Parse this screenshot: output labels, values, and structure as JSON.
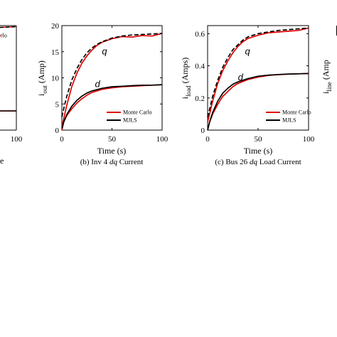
{
  "chart_data": [
    {
      "type": "line",
      "panel": "a-partial",
      "xlim": [
        0,
        100
      ],
      "x_ticks": [
        100
      ],
      "caption_tail": "e",
      "legend_partial": "rlo",
      "series": [
        {
          "name": "Monte Carlo",
          "color": "#e00000",
          "style": "solid",
          "x": [
            0,
            20,
            40,
            60,
            80,
            100
          ],
          "y": [
            0.97,
            0.975,
            0.98,
            0.985,
            0.99,
            0.995
          ]
        },
        {
          "name": "MJLS",
          "color": "#000000",
          "style": "dashed",
          "x": [
            0,
            20,
            40,
            60,
            80,
            100
          ],
          "y": [
            0.97,
            0.975,
            0.98,
            0.985,
            0.99,
            0.995
          ]
        },
        {
          "name": "Monte Carlo",
          "color": "#e00000",
          "style": "solid",
          "x": [
            0,
            50,
            100
          ],
          "y": [
            0.2,
            0.2,
            0.2
          ]
        },
        {
          "name": "MJLS",
          "color": "#000000",
          "style": "solid",
          "x": [
            0,
            50,
            100
          ],
          "y": [
            0.2,
            0.2,
            0.2
          ]
        }
      ]
    },
    {
      "type": "line",
      "panel": "b",
      "caption_prefix": "(b)  Inv 4 ",
      "caption_italic": "dq",
      "caption_suffix": " Current",
      "xlabel": "Time (s)",
      "ylabel_main": "i",
      "ylabel_sub": "out",
      "ylabel_unit": " (Amp)",
      "xlim": [
        0,
        100
      ],
      "ylim": [
        0,
        20
      ],
      "x_ticks": [
        0,
        50,
        100
      ],
      "y_ticks": [
        0,
        5,
        10,
        15,
        20
      ],
      "annotations": [
        {
          "text": "q",
          "x": 40,
          "y": 14.5
        },
        {
          "text": "d",
          "x": 33,
          "y": 8.2
        }
      ],
      "legend": [
        "Monte Carlo",
        "MJLS"
      ],
      "series": [
        {
          "name": "Monte Carlo",
          "color": "#e00000",
          "style": "solid",
          "x": [
            0,
            2,
            5,
            10,
            15,
            20,
            25,
            30,
            35,
            40,
            50,
            60,
            70,
            80,
            90,
            100
          ],
          "y": [
            0.5,
            2.3,
            4.8,
            8.4,
            10.9,
            12.8,
            14.2,
            15.3,
            16.2,
            16.8,
            17.5,
            17.9,
            17.8,
            18.1,
            18.0,
            18.5
          ]
        },
        {
          "name": "MJLS",
          "color": "#000000",
          "style": "dashed",
          "x": [
            0,
            2,
            5,
            10,
            15,
            20,
            25,
            30,
            35,
            40,
            50,
            60,
            70,
            80,
            90,
            100
          ],
          "y": [
            2.5,
            4.2,
            6.5,
            9.6,
            11.8,
            13.5,
            14.8,
            15.7,
            16.4,
            16.9,
            17.6,
            18.0,
            18.2,
            18.3,
            18.4,
            18.5
          ]
        },
        {
          "name": "Monte Carlo",
          "color": "#e00000",
          "style": "solid",
          "x": [
            0,
            2,
            5,
            10,
            15,
            20,
            25,
            30,
            40,
            50,
            60,
            70,
            80,
            90,
            100
          ],
          "y": [
            0,
            1.6,
            2.8,
            4.1,
            5.2,
            6.0,
            6.7,
            7.2,
            7.8,
            8.1,
            8.3,
            8.4,
            8.5,
            8.6,
            8.7
          ]
        },
        {
          "name": "MJLS",
          "color": "#000000",
          "style": "solid",
          "x": [
            0,
            2,
            5,
            10,
            15,
            20,
            25,
            30,
            40,
            50,
            60,
            70,
            80,
            90,
            100
          ],
          "y": [
            0.3,
            1.6,
            3.0,
            4.6,
            5.7,
            6.5,
            7.1,
            7.5,
            8.0,
            8.3,
            8.4,
            8.5,
            8.6,
            8.6,
            8.7
          ]
        }
      ]
    },
    {
      "type": "line",
      "panel": "c",
      "caption_prefix": "(c)  Bus 26 ",
      "caption_italic": "dq",
      "caption_suffix": " Load Current",
      "xlabel": "Time (s)",
      "ylabel_main": "i",
      "ylabel_sub": "load",
      "ylabel_unit": " (Amps)",
      "xlim": [
        0,
        100
      ],
      "ylim": [
        0,
        0.65
      ],
      "x_ticks": [
        0,
        50,
        100
      ],
      "y_ticks": [
        0,
        0.2,
        0.4,
        0.6
      ],
      "y_tick_labels": [
        "0",
        "0.2",
        "0.4",
        "0.6"
      ],
      "annotations": [
        {
          "text": "q",
          "x": 37,
          "y": 0.47
        },
        {
          "text": "d",
          "x": 30,
          "y": 0.31
        }
      ],
      "legend": [
        "Monte Carlo",
        "MJLS"
      ],
      "series": [
        {
          "name": "Monte Carlo",
          "color": "#e00000",
          "style": "solid",
          "x": [
            0,
            2,
            5,
            10,
            15,
            20,
            25,
            30,
            35,
            40,
            50,
            60,
            70,
            80,
            90,
            100
          ],
          "y": [
            0.05,
            0.1,
            0.18,
            0.29,
            0.37,
            0.43,
            0.48,
            0.52,
            0.55,
            0.57,
            0.59,
            0.605,
            0.61,
            0.615,
            0.62,
            0.635
          ]
        },
        {
          "name": "MJLS",
          "color": "#000000",
          "style": "dashed",
          "x": [
            0,
            2,
            5,
            10,
            15,
            20,
            25,
            30,
            35,
            40,
            50,
            60,
            70,
            80,
            90,
            100
          ],
          "y": [
            0.08,
            0.13,
            0.21,
            0.31,
            0.39,
            0.45,
            0.5,
            0.53,
            0.56,
            0.58,
            0.6,
            0.61,
            0.62,
            0.625,
            0.63,
            0.635
          ]
        },
        {
          "name": "Monte Carlo",
          "color": "#e00000",
          "style": "solid",
          "x": [
            0,
            2,
            5,
            10,
            15,
            20,
            25,
            30,
            40,
            50,
            60,
            70,
            80,
            90,
            100
          ],
          "y": [
            0.0,
            0.05,
            0.1,
            0.16,
            0.21,
            0.24,
            0.27,
            0.29,
            0.315,
            0.33,
            0.34,
            0.345,
            0.348,
            0.35,
            0.352
          ]
        },
        {
          "name": "MJLS",
          "color": "#000000",
          "style": "solid",
          "x": [
            0,
            2,
            5,
            10,
            15,
            20,
            25,
            30,
            40,
            50,
            60,
            70,
            80,
            90,
            100
          ],
          "y": [
            0.0,
            0.05,
            0.11,
            0.18,
            0.23,
            0.26,
            0.285,
            0.3,
            0.32,
            0.335,
            0.342,
            0.346,
            0.349,
            0.35,
            0.352
          ]
        }
      ]
    },
    {
      "type": "line",
      "panel": "d-partial",
      "ylabel_main": "i",
      "ylabel_sub": "line",
      "ylabel_unit": " (Amp"
    }
  ]
}
